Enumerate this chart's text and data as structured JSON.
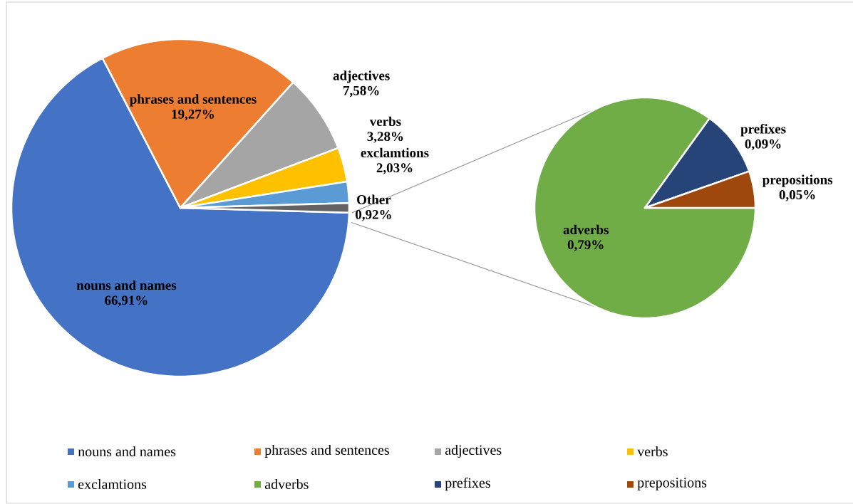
{
  "chart_data": [
    {
      "type": "pie",
      "categories": [
        "nouns and names",
        "phrases and sentences",
        "adjectives",
        "verbs",
        "exclamtions",
        "Other"
      ],
      "values": [
        66.91,
        19.27,
        7.58,
        3.28,
        2.03,
        0.92
      ],
      "colors": [
        "#4472c4",
        "#ed7d31",
        "#a5a5a5",
        "#ffc000",
        "#5b9bd5",
        "#636363"
      ],
      "value_labels": [
        "66,91%",
        "19,27%",
        "7,58%",
        "3,28%",
        "2,03%",
        "0,92%"
      ],
      "legend": "bottom"
    },
    {
      "type": "pie",
      "categories": [
        "adverbs",
        "prefixes",
        "prepositions"
      ],
      "values": [
        0.79,
        0.09,
        0.05
      ],
      "colors": [
        "#70ad47",
        "#264478",
        "#9e480e"
      ],
      "value_labels": [
        "0,79%",
        "0,09%",
        "0,05%"
      ],
      "legend": "bottom"
    }
  ]
}
